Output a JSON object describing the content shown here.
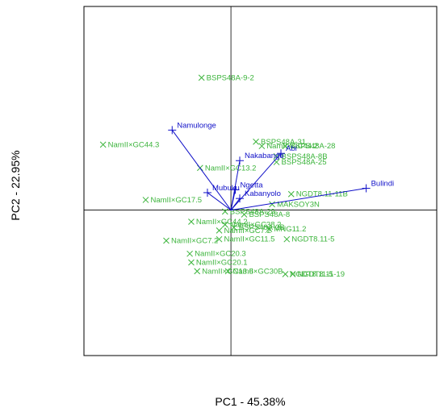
{
  "chart_data": {
    "type": "scatter",
    "subtype": "pca-biplot",
    "title": "",
    "xlabel": "PC1 - 45.38%",
    "ylabel": "PC2 - 22.95%",
    "xlim": [
      -1.0,
      1.4
    ],
    "ylim": [
      -1.0,
      1.4
    ],
    "zero_lines": true,
    "grid": false,
    "legend": "none",
    "colors": {
      "vectors": "#1010c8",
      "genotypes": "#3cb43c",
      "axes": "#000000"
    },
    "vectors": [
      {
        "name": "Namulonge",
        "x": -0.4,
        "y": 0.55
      },
      {
        "name": "Abi",
        "x": 0.34,
        "y": 0.39
      },
      {
        "name": "Nakabango",
        "x": 0.06,
        "y": 0.34
      },
      {
        "name": "Bulindi",
        "x": 0.92,
        "y": 0.15
      },
      {
        "name": "Ngetta",
        "x": 0.03,
        "y": 0.14
      },
      {
        "name": "Mubuku",
        "x": -0.16,
        "y": 0.12
      },
      {
        "name": "Kabanyolo",
        "x": 0.06,
        "y": 0.08
      }
    ],
    "points": [
      {
        "name": "BSPS48A-9-2",
        "x": -0.2,
        "y": 0.91
      },
      {
        "name": "NamII×GC44.3",
        "x": -0.87,
        "y": 0.45
      },
      {
        "name": "BSPS48A-31",
        "x": 0.17,
        "y": 0.47
      },
      {
        "name": "NamII×GC44.2",
        "x": 0.21,
        "y": 0.44
      },
      {
        "name": "BSPS48A-28",
        "x": 0.37,
        "y": 0.44
      },
      {
        "name": "BSPS48A-8B",
        "x": 0.31,
        "y": 0.37
      },
      {
        "name": "BSPS48A-25",
        "x": 0.31,
        "y": 0.33
      },
      {
        "name": "NamII×GC13.2",
        "x": -0.21,
        "y": 0.29
      },
      {
        "name": "NamII×GC17.5",
        "x": -0.58,
        "y": 0.07
      },
      {
        "name": "MAKSOY3N",
        "x": 0.28,
        "y": 0.04
      },
      {
        "name": "NGDT8.11-11B",
        "x": 0.41,
        "y": 0.11
      },
      {
        "name": "BSPS48A-29",
        "x": -0.04,
        "y": -0.01
      },
      {
        "name": "BSPS48A-8",
        "x": 0.09,
        "y": -0.03
      },
      {
        "name": "NamII×GC44.2",
        "x": -0.27,
        "y": -0.08
      },
      {
        "name": "MNG11.2",
        "x": 0.26,
        "y": -0.13
      },
      {
        "name": "NamII×GC38.2",
        "x": -0.04,
        "y": -0.1
      },
      {
        "name": "BSPS48A-2B",
        "x": 0.02,
        "y": -0.12
      },
      {
        "name": "NamII×GC7.2",
        "x": -0.08,
        "y": -0.14
      },
      {
        "name": "NamII×GC7.2",
        "x": -0.44,
        "y": -0.21
      },
      {
        "name": "NamII×GC11.5",
        "x": -0.08,
        "y": -0.2
      },
      {
        "name": "NGDT8.11-5",
        "x": 0.38,
        "y": -0.2
      },
      {
        "name": "NamII×GC20.3",
        "x": -0.28,
        "y": -0.3
      },
      {
        "name": "NamII×GC20.1",
        "x": -0.27,
        "y": -0.36
      },
      {
        "name": "NamII×GC13.6",
        "x": -0.23,
        "y": -0.42
      },
      {
        "name": "NamII×GC30B",
        "x": -0.02,
        "y": -0.42
      },
      {
        "name": "NGDT8.11-19",
        "x": 0.42,
        "y": -0.44
      },
      {
        "name": "NGDT8.11-5",
        "x": 0.37,
        "y": -0.44
      }
    ]
  }
}
